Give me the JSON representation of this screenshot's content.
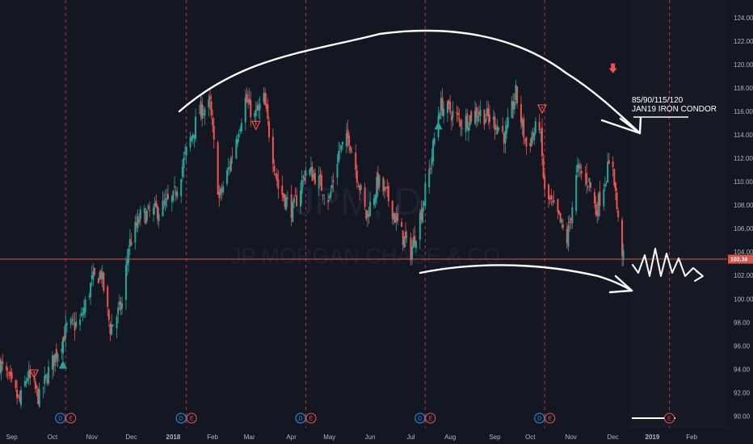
{
  "symbol_watermark": "JPM, D",
  "company_watermark": "JP MORGAN CHASE & CO",
  "last_price_label": "103.39",
  "annotation": {
    "line1": "85/90/115/120",
    "line2": "JAN19 IRON CONDOR"
  },
  "colors": {
    "background": "#131722",
    "up": "#26a69a",
    "down": "#ef5350",
    "grid_event": "#b2343a",
    "price_line": "#e0534a",
    "drawing": "#ffffff"
  },
  "event_markers": [
    {
      "x_date": "2017-10-12",
      "labels": [
        "D",
        "E"
      ]
    },
    {
      "x_date": "2018-01-12",
      "labels": [
        "D",
        "E"
      ]
    },
    {
      "x_date": "2018-04-13",
      "labels": [
        "D",
        "E"
      ]
    },
    {
      "x_date": "2018-07-13",
      "labels": [
        "D",
        "E"
      ]
    },
    {
      "x_date": "2018-10-12",
      "labels": [
        "D",
        "E"
      ]
    },
    {
      "x_date": "2019-01-15",
      "labels": [
        "E"
      ]
    }
  ],
  "chart_data": {
    "type": "candlestick",
    "title": "",
    "xlabel": "",
    "ylabel": "",
    "ylim": [
      89.0,
      125.5
    ],
    "xlim": [
      "2017-08-23",
      "2019-02-28"
    ],
    "y_ticks": [
      "90.00",
      "92.00",
      "94.00",
      "96.00",
      "98.00",
      "100.00",
      "102.00",
      "104.00",
      "106.00",
      "108.00",
      "110.00",
      "112.00",
      "114.00",
      "116.00",
      "118.00",
      "120.00",
      "122.00",
      "124.00"
    ],
    "x_ticks": [
      {
        "label": "Sep",
        "date": "2017-09-01"
      },
      {
        "label": "Oct",
        "date": "2017-10-02"
      },
      {
        "label": "Nov",
        "date": "2017-11-01"
      },
      {
        "label": "Dec",
        "date": "2017-12-01"
      },
      {
        "label": "2018",
        "date": "2018-01-02"
      },
      {
        "label": "Feb",
        "date": "2018-02-01"
      },
      {
        "label": "Mar",
        "date": "2018-03-01"
      },
      {
        "label": "Apr",
        "date": "2018-04-02"
      },
      {
        "label": "May",
        "date": "2018-05-01"
      },
      {
        "label": "Jun",
        "date": "2018-06-01"
      },
      {
        "label": "Jul",
        "date": "2018-07-02"
      },
      {
        "label": "Aug",
        "date": "2018-08-01"
      },
      {
        "label": "Sep",
        "date": "2018-09-04"
      },
      {
        "label": "Oct",
        "date": "2018-10-01"
      },
      {
        "label": "Nov",
        "date": "2018-11-01"
      },
      {
        "label": "Dec",
        "date": "2018-12-03"
      },
      {
        "label": "2019",
        "date": "2019-01-02"
      },
      {
        "label": "Feb",
        "date": "2019-02-01"
      }
    ],
    "last_price": 103.39,
    "signals": [
      {
        "type": "sell",
        "date": "2017-09-18",
        "price": 93.6
      },
      {
        "type": "buy",
        "date": "2017-10-10",
        "price": 94.4
      },
      {
        "type": "sell",
        "date": "2018-03-06",
        "price": 114.8
      },
      {
        "type": "buy",
        "date": "2018-07-23",
        "price": 114.8
      },
      {
        "type": "sell",
        "date": "2018-10-10",
        "price": 116.2
      },
      {
        "type": "sell",
        "date": "2018-12-03",
        "price": 119.6
      }
    ],
    "anchors": [
      [
        "2017-08-23",
        94.5
      ],
      [
        "2017-09-07",
        91.2
      ],
      [
        "2017-09-13",
        93.5
      ],
      [
        "2017-09-22",
        91.5
      ],
      [
        "2017-09-29",
        93.8
      ],
      [
        "2017-10-13",
        97.5
      ],
      [
        "2017-10-23",
        98.0
      ],
      [
        "2017-11-01",
        101.5
      ],
      [
        "2017-11-08",
        102.2
      ],
      [
        "2017-11-15",
        97.5
      ],
      [
        "2017-11-24",
        99.5
      ],
      [
        "2017-11-29",
        104.5
      ],
      [
        "2017-12-08",
        107.0
      ],
      [
        "2017-12-20",
        107.5
      ],
      [
        "2018-01-02",
        108.5
      ],
      [
        "2018-01-12",
        112.5
      ],
      [
        "2018-01-22",
        116.0
      ],
      [
        "2018-01-30",
        116.5
      ],
      [
        "2018-02-06",
        108.5
      ],
      [
        "2018-02-13",
        111.0
      ],
      [
        "2018-02-26",
        117.0
      ],
      [
        "2018-03-05",
        115.5
      ],
      [
        "2018-03-12",
        117.0
      ],
      [
        "2018-03-23",
        109.5
      ],
      [
        "2018-04-03",
        107.5
      ],
      [
        "2018-04-13",
        111.0
      ],
      [
        "2018-04-20",
        110.5
      ],
      [
        "2018-05-01",
        108.5
      ],
      [
        "2018-05-08",
        112.5
      ],
      [
        "2018-05-16",
        113.8
      ],
      [
        "2018-05-29",
        107.0
      ],
      [
        "2018-06-07",
        110.0
      ],
      [
        "2018-06-15",
        108.5
      ],
      [
        "2018-06-25",
        105.5
      ],
      [
        "2018-07-02",
        104.0
      ],
      [
        "2018-07-10",
        107.5
      ],
      [
        "2018-07-17",
        111.5
      ],
      [
        "2018-07-24",
        116.5
      ],
      [
        "2018-08-01",
        116.0
      ],
      [
        "2018-08-10",
        115.0
      ],
      [
        "2018-08-22",
        116.0
      ],
      [
        "2018-09-05",
        115.0
      ],
      [
        "2018-09-12",
        113.8
      ],
      [
        "2018-09-20",
        117.5
      ],
      [
        "2018-09-28",
        113.0
      ],
      [
        "2018-10-08",
        115.0
      ],
      [
        "2018-10-12",
        109.0
      ],
      [
        "2018-10-22",
        107.0
      ],
      [
        "2018-10-29",
        105.0
      ],
      [
        "2018-11-06",
        111.0
      ],
      [
        "2018-11-15",
        110.0
      ],
      [
        "2018-11-20",
        107.5
      ],
      [
        "2018-11-29",
        111.0
      ],
      [
        "2018-12-03",
        111.5
      ],
      [
        "2018-12-07",
        106.5
      ],
      [
        "2018-12-11",
        103.4
      ]
    ]
  }
}
